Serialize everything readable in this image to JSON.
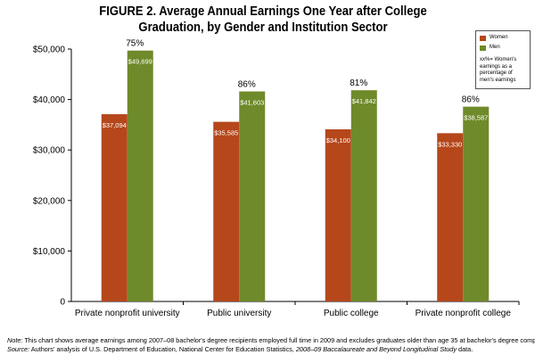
{
  "title_line1": "FIGURE 2. Average Annual Earnings One Year after College",
  "title_line2": "Graduation, by Gender and Institution Sector",
  "colors": {
    "women": "#b5471b",
    "men": "#6f8a2a",
    "axis": "#000000"
  },
  "legend": {
    "women": "Women",
    "men": "Men",
    "note": "xx%= Women's earnings as a percentage of men's earnings"
  },
  "notes": {
    "note_label": "Note:",
    "note_text": " This chart shows average earnings among 2007–08 bachelor's degree recipients employed full time in 2009 and excludes graduates older than age 35 at bachelor's degree completion.",
    "source_label": "Source:",
    "source_text": " Authors' analysis of U.S. Department of Education, National Center for Education Statistics, ",
    "source_italic": "2008–09 Baccalaureate and Beyond Longitudinal Study",
    "source_end": " data."
  },
  "chart_data": {
    "type": "bar",
    "categories": [
      "Private nonprofit university",
      "Public university",
      "Public college",
      "Private nonprofit college"
    ],
    "series": [
      {
        "name": "Women",
        "values": [
          37094,
          35585,
          34100,
          33330
        ],
        "labels": [
          "$37,094",
          "$35,585",
          "$34,100",
          "$33,330"
        ]
      },
      {
        "name": "Men",
        "values": [
          49699,
          41603,
          41842,
          38587
        ],
        "labels": [
          "$49,699",
          "$41,603",
          "$41,842",
          "$38,587"
        ]
      }
    ],
    "percentages": [
      "75%",
      "86%",
      "81%",
      "86%"
    ],
    "ylim": [
      0,
      50000
    ],
    "yticks": [
      0,
      10000,
      20000,
      30000,
      40000,
      50000
    ],
    "ytick_labels": [
      "0",
      "$10,000",
      "$20,000",
      "$30,000",
      "$40,000",
      "$50,000"
    ],
    "grid": false,
    "legend_position": "right"
  }
}
